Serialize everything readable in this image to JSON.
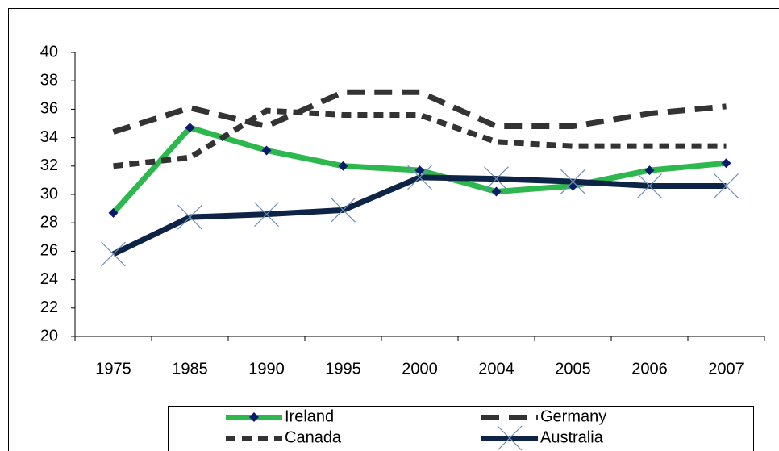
{
  "chart_data": {
    "type": "line",
    "categories": [
      "1975",
      "1985",
      "1990",
      "1995",
      "2000",
      "2004",
      "2005",
      "2006",
      "2007"
    ],
    "series": [
      {
        "name": "Ireland",
        "color": "#2db84d",
        "dash": "solid",
        "marker": "diamond",
        "marker_color": "#0a1a6e",
        "values": [
          28.7,
          34.7,
          33.1,
          32.0,
          31.7,
          30.2,
          30.6,
          31.7,
          32.2
        ]
      },
      {
        "name": "Germany",
        "color": "#333333",
        "dash": "long",
        "marker": "none",
        "values": [
          34.4,
          36.1,
          34.8,
          37.2,
          37.2,
          34.8,
          34.8,
          35.7,
          36.2
        ]
      },
      {
        "name": "Canada",
        "color": "#333333",
        "dash": "short",
        "marker": "none",
        "values": [
          32.0,
          32.6,
          35.9,
          35.6,
          35.6,
          33.7,
          33.4,
          33.4,
          33.4
        ]
      },
      {
        "name": "Australia",
        "color": "#0d2446",
        "dash": "solid",
        "marker": "x",
        "marker_color": "#6f8fb8",
        "values": [
          25.8,
          28.4,
          28.6,
          28.9,
          31.2,
          31.1,
          30.9,
          30.6,
          30.6
        ]
      }
    ],
    "ylim": [
      20,
      40
    ],
    "yticks": [
      20,
      22,
      24,
      26,
      28,
      30,
      32,
      34,
      36,
      38,
      40
    ],
    "grid": false,
    "legend": "bottom"
  }
}
